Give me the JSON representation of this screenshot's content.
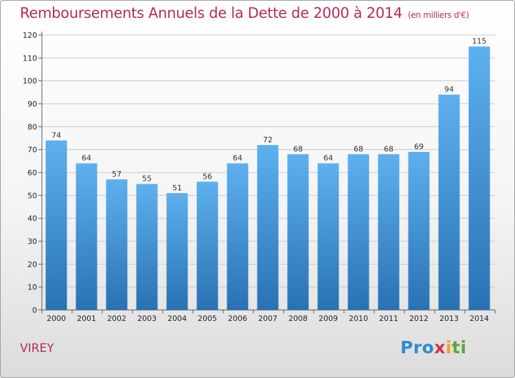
{
  "header": {
    "title": "Remboursements Annuels de la Dette de 2000 à 2014",
    "subtitle": "(en milliers d'€)"
  },
  "footer": {
    "commune": "VIREY",
    "logo": {
      "p1": "Pro",
      "p2": "x",
      "p3": "i",
      "p4": "ti"
    }
  },
  "colors": {
    "title": "#b52b58",
    "bar_light": "#5eb0ee",
    "bar_dark": "#2872b4",
    "grid": "#c8c8c8"
  },
  "chart_data": {
    "type": "bar",
    "categories": [
      "2000",
      "2001",
      "2002",
      "2003",
      "2004",
      "2005",
      "2006",
      "2007",
      "2008",
      "2009",
      "2010",
      "2011",
      "2012",
      "2013",
      "2014"
    ],
    "values": [
      74,
      64,
      57,
      55,
      51,
      56,
      64,
      72,
      68,
      64,
      68,
      68,
      69,
      94,
      115
    ],
    "title": "Remboursements Annuels de la Dette de 2000 à 2014",
    "ylabel": "",
    "xlabel": "",
    "ylim": [
      0,
      120
    ],
    "yticks": [
      0,
      10,
      20,
      30,
      40,
      50,
      60,
      70,
      80,
      90,
      100,
      110,
      120
    ],
    "grid": true,
    "data_labels": true
  }
}
